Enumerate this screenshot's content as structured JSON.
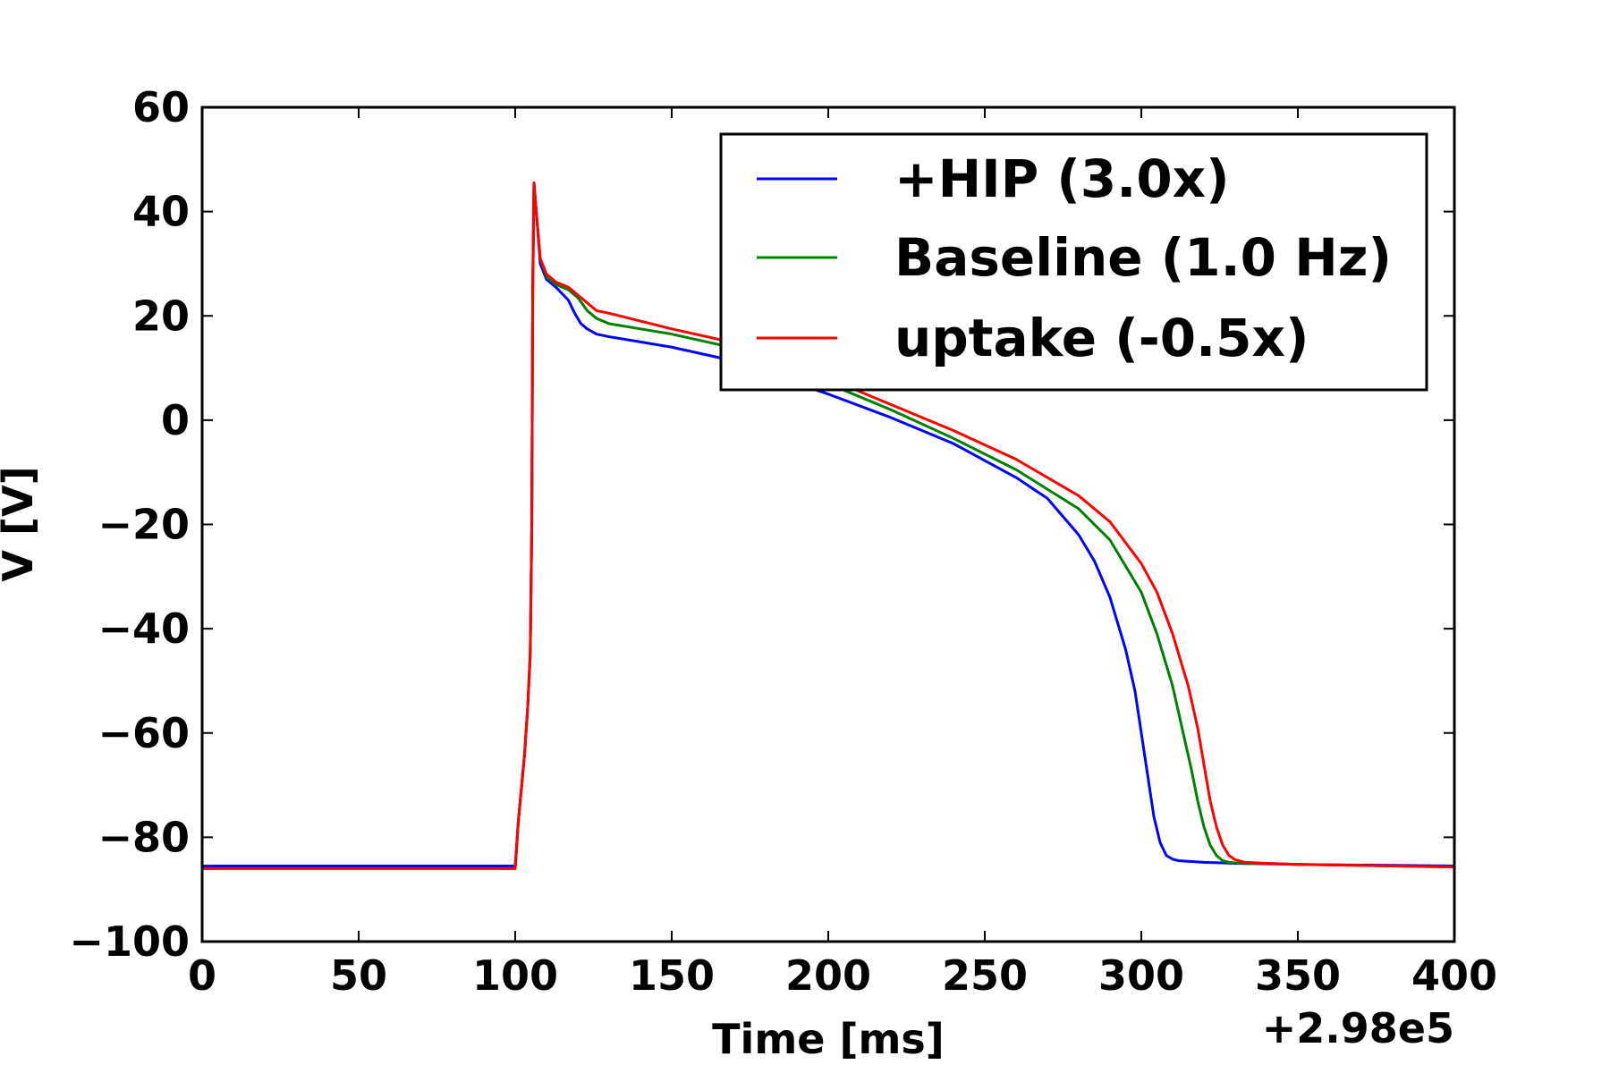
{
  "chart_data": {
    "type": "line",
    "title": "",
    "xlabel": "Time [ms]",
    "ylabel": "V [V]",
    "x_offset_label": "+2.98e5",
    "xlim": [
      0,
      400
    ],
    "ylim": [
      -100,
      60
    ],
    "xticks": [
      0,
      50,
      100,
      150,
      200,
      250,
      300,
      350,
      400
    ],
    "xtick_labels": [
      "0",
      "50",
      "100",
      "150",
      "200",
      "250",
      "300",
      "350",
      "400"
    ],
    "yticks": [
      60,
      40,
      20,
      0,
      -20,
      -40,
      -60,
      -80,
      -100
    ],
    "ytick_labels": [
      "60",
      "40",
      "20",
      "0",
      "−20",
      "−40",
      "−60",
      "−80",
      "−100"
    ],
    "grid": false,
    "legend_position": "top-right",
    "series": [
      {
        "name": "+HIP (3.0x)",
        "color": "#0000ff",
        "x": [
          0,
          100,
          101,
          103,
          104,
          104.8,
          105.3,
          105.6,
          106,
          107,
          108,
          110,
          113,
          117,
          119,
          121,
          123,
          126,
          130,
          140,
          150,
          165,
          180,
          200,
          220,
          240,
          260,
          270,
          280,
          285,
          290,
          295,
          298,
          300,
          302,
          304,
          306,
          308,
          310,
          312,
          315,
          320,
          330,
          350,
          400
        ],
        "y": [
          -85.5,
          -85.5,
          -77,
          -64,
          -55,
          -45,
          -20,
          25,
          45.5,
          38,
          30,
          27,
          25.5,
          23,
          20.5,
          18.5,
          17.5,
          16.5,
          16,
          15,
          14,
          12,
          9,
          5,
          0.5,
          -4.5,
          -11,
          -15,
          -22,
          -27,
          -34,
          -44,
          -52,
          -60,
          -68,
          -76,
          -81,
          -83.5,
          -84.2,
          -84.5,
          -84.6,
          -84.8,
          -85,
          -85.2,
          -85.5
        ]
      },
      {
        "name": "Baseline (1.0 Hz)",
        "color": "#008000",
        "x": [
          0,
          100,
          101,
          103,
          104,
          104.8,
          105.3,
          105.6,
          106,
          107,
          108,
          110,
          113,
          117,
          120,
          123,
          126,
          130,
          140,
          150,
          165,
          180,
          200,
          220,
          240,
          260,
          280,
          290,
          300,
          305,
          310,
          313,
          316,
          318,
          320,
          322,
          324,
          326,
          328,
          330,
          335,
          340,
          350,
          400
        ],
        "y": [
          -86,
          -86,
          -77,
          -64,
          -55,
          -45,
          -20,
          25,
          45.5,
          38,
          31,
          27.5,
          26,
          25,
          23.5,
          21,
          19.5,
          18.5,
          17.5,
          16.5,
          14.5,
          11.5,
          7,
          2,
          -3.5,
          -9.5,
          -17,
          -23,
          -33,
          -41,
          -51,
          -59,
          -67,
          -73,
          -78,
          -81.5,
          -83.5,
          -84.5,
          -84.8,
          -84.9,
          -85,
          -85,
          -85.2,
          -85.7
        ]
      },
      {
        "name": "uptake (-0.5x)",
        "color": "#ff0000",
        "x": [
          0,
          100,
          101,
          103,
          104,
          104.8,
          105.3,
          105.6,
          106,
          107,
          108,
          110,
          113,
          117,
          120,
          123,
          126,
          130,
          140,
          150,
          165,
          180,
          200,
          220,
          240,
          260,
          280,
          290,
          300,
          305,
          310,
          315,
          318,
          320,
          322,
          324,
          326,
          328,
          330,
          333,
          340,
          350,
          400
        ],
        "y": [
          -86,
          -86,
          -77,
          -64,
          -55,
          -45,
          -20,
          25,
          45.5,
          38,
          31,
          28,
          26.5,
          25.5,
          24,
          22.5,
          21,
          20.5,
          19,
          17.5,
          15.5,
          12.5,
          8,
          3,
          -2,
          -7.5,
          -14.5,
          -19.5,
          -27.5,
          -33,
          -41,
          -51,
          -59,
          -66,
          -73,
          -78,
          -81.5,
          -83.5,
          -84.3,
          -84.8,
          -85,
          -85.2,
          -85.7
        ]
      }
    ]
  }
}
